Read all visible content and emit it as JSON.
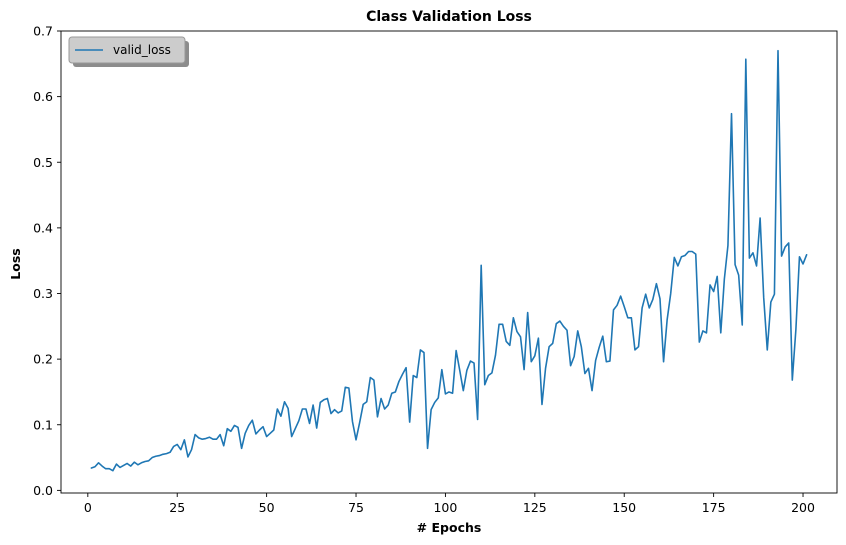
{
  "chart_data": {
    "type": "line",
    "title": "Class Validation Loss",
    "xlabel": "# Epochs",
    "ylabel": "Loss",
    "xlim": [
      -7.5,
      209.5
    ],
    "ylim": [
      -0.004,
      0.7
    ],
    "xticks": [
      0,
      25,
      50,
      75,
      100,
      125,
      150,
      175,
      200
    ],
    "yticks": [
      0.0,
      0.1,
      0.2,
      0.3,
      0.4,
      0.5,
      0.6,
      0.7
    ],
    "ytick_labels": [
      "0.0",
      "0.1",
      "0.2",
      "0.3",
      "0.4",
      "0.5",
      "0.6",
      "0.7"
    ],
    "grid": false,
    "legend_position": "top-left",
    "series": [
      {
        "name": "valid_loss",
        "color": "#1f77b4",
        "x_start": 1,
        "x_step": 1,
        "values": [
          0.034,
          0.036,
          0.042,
          0.037,
          0.033,
          0.033,
          0.03,
          0.04,
          0.035,
          0.038,
          0.041,
          0.037,
          0.043,
          0.039,
          0.042,
          0.044,
          0.045,
          0.05,
          0.052,
          0.053,
          0.055,
          0.056,
          0.058,
          0.067,
          0.07,
          0.062,
          0.077,
          0.051,
          0.062,
          0.085,
          0.08,
          0.078,
          0.079,
          0.081,
          0.078,
          0.078,
          0.085,
          0.068,
          0.094,
          0.09,
          0.099,
          0.096,
          0.064,
          0.087,
          0.099,
          0.107,
          0.086,
          0.092,
          0.097,
          0.082,
          0.087,
          0.092,
          0.124,
          0.113,
          0.135,
          0.125,
          0.082,
          0.094,
          0.106,
          0.124,
          0.124,
          0.102,
          0.13,
          0.095,
          0.134,
          0.138,
          0.14,
          0.117,
          0.123,
          0.118,
          0.121,
          0.157,
          0.156,
          0.105,
          0.077,
          0.103,
          0.131,
          0.135,
          0.172,
          0.168,
          0.112,
          0.14,
          0.124,
          0.13,
          0.148,
          0.15,
          0.166,
          0.177,
          0.187,
          0.104,
          0.175,
          0.172,
          0.214,
          0.21,
          0.064,
          0.123,
          0.134,
          0.141,
          0.184,
          0.147,
          0.15,
          0.148,
          0.213,
          0.183,
          0.152,
          0.183,
          0.197,
          0.194,
          0.108,
          0.343,
          0.161,
          0.175,
          0.179,
          0.206,
          0.253,
          0.253,
          0.227,
          0.221,
          0.263,
          0.242,
          0.234,
          0.184,
          0.271,
          0.196,
          0.205,
          0.232,
          0.131,
          0.186,
          0.219,
          0.224,
          0.254,
          0.258,
          0.25,
          0.244,
          0.19,
          0.204,
          0.243,
          0.219,
          0.178,
          0.186,
          0.152,
          0.198,
          0.218,
          0.235,
          0.196,
          0.197,
          0.275,
          0.282,
          0.296,
          0.28,
          0.263,
          0.263,
          0.214,
          0.219,
          0.278,
          0.299,
          0.278,
          0.291,
          0.315,
          0.292,
          0.196,
          0.26,
          0.3,
          0.355,
          0.342,
          0.356,
          0.358,
          0.364,
          0.364,
          0.36,
          0.226,
          0.243,
          0.24,
          0.313,
          0.303,
          0.326,
          0.24,
          0.322,
          0.373,
          0.574,
          0.344,
          0.328,
          0.252,
          0.657,
          0.354,
          0.362,
          0.342,
          0.415,
          0.294,
          0.214,
          0.287,
          0.299,
          0.67,
          0.357,
          0.371,
          0.377,
          0.168,
          0.245,
          0.356,
          0.345,
          0.359
        ]
      }
    ]
  }
}
